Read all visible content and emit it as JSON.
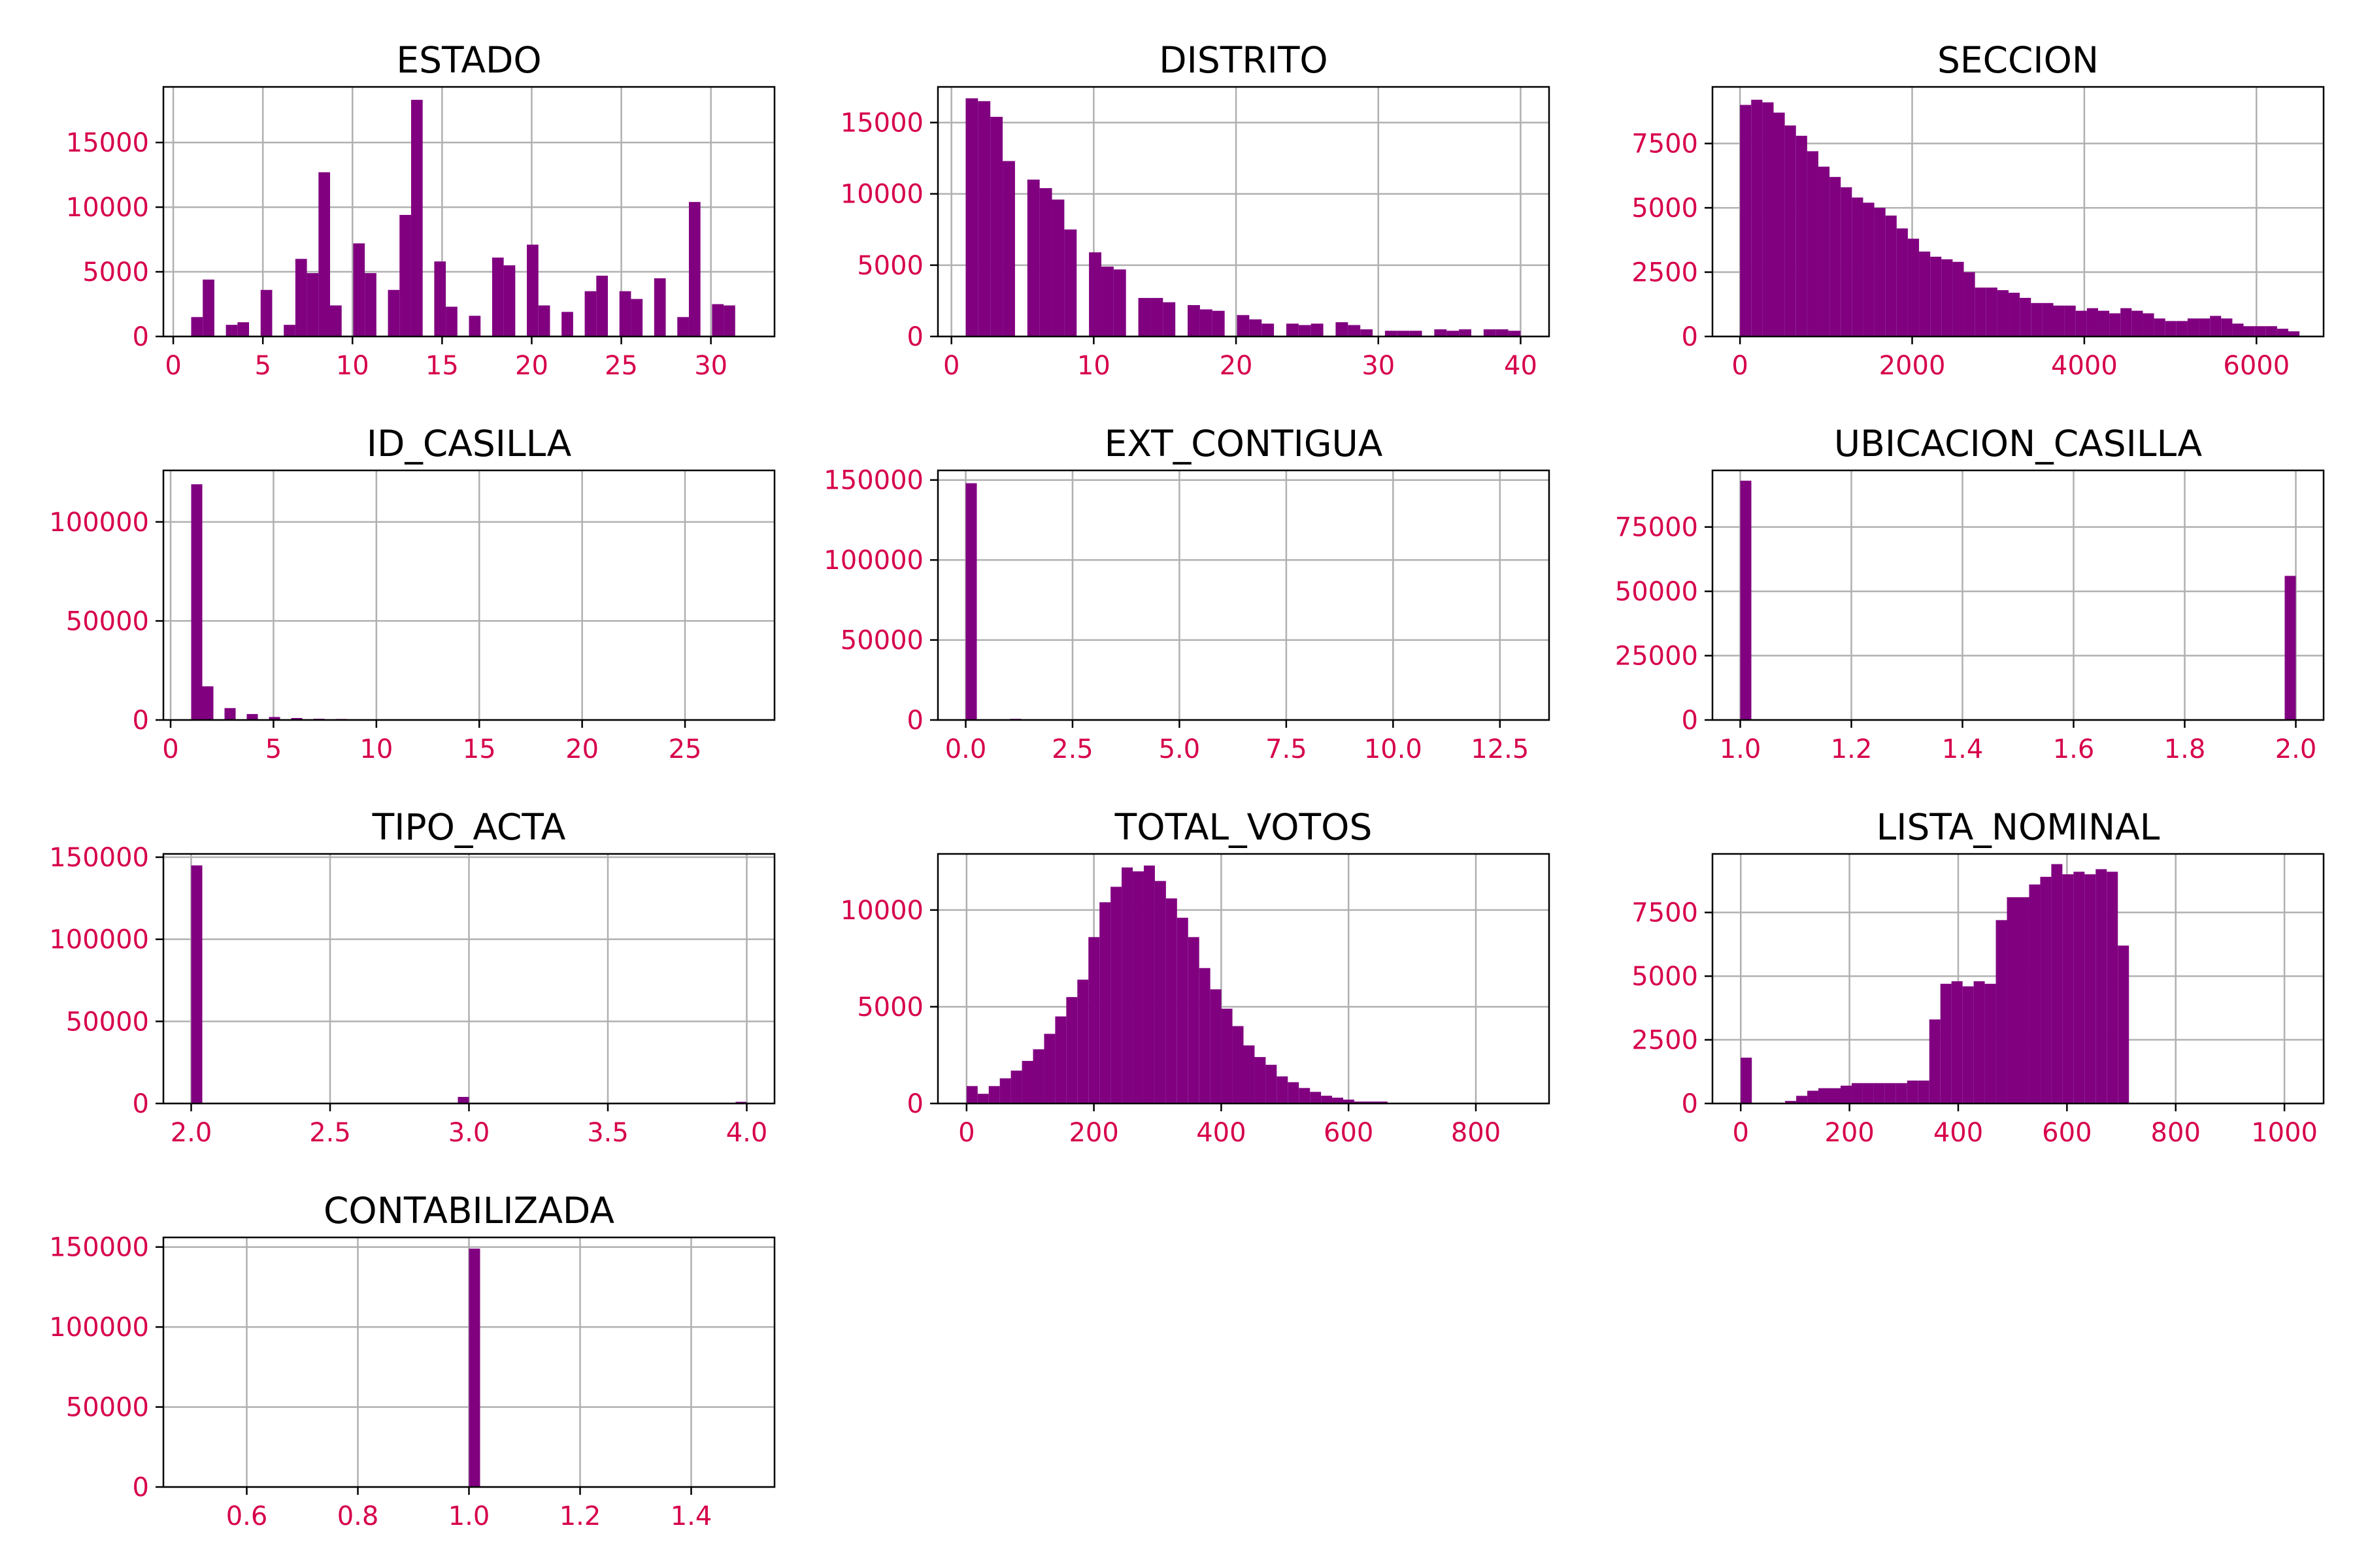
{
  "colors": {
    "bar": "#800080",
    "tick_label": "#d6004a",
    "grid": "#b0b0b0"
  },
  "chart_data": [
    {
      "type": "bar",
      "title": "ESTADO",
      "xlim": [
        -0.55,
        33.55
      ],
      "ylim": [
        0,
        19300
      ],
      "xticks": [
        0,
        5,
        10,
        15,
        20,
        25,
        30
      ],
      "yticks": [
        0,
        5000,
        10000,
        15000
      ],
      "grid": true,
      "bins_start": 1,
      "bins_end": 32,
      "values": [
        1500,
        4400,
        0,
        900,
        1100,
        0,
        3600,
        0,
        900,
        6000,
        4900,
        12700,
        2400,
        0,
        7200,
        4900,
        0,
        3600,
        9400,
        18300,
        0,
        5800,
        2300,
        0,
        1600,
        0,
        6100,
        5500,
        0,
        7100,
        2400,
        0,
        1900,
        0,
        3500,
        4700,
        0,
        3500,
        2900,
        0,
        4500,
        0,
        1500,
        10400,
        0,
        2500,
        2400,
        0
      ]
    },
    {
      "type": "bar",
      "title": "DISTRITO",
      "xlim": [
        -0.95,
        42.0
      ],
      "ylim": [
        0,
        17500
      ],
      "xticks": [
        0,
        10,
        20,
        30,
        40
      ],
      "yticks": [
        0,
        5000,
        10000,
        15000
      ],
      "grid": true,
      "bins_start": 1,
      "bins_end": 40,
      "values": [
        16700,
        16500,
        15400,
        12300,
        0,
        11000,
        10400,
        9600,
        7500,
        0,
        5900,
        4900,
        4700,
        0,
        2700,
        2700,
        2400,
        0,
        2200,
        1900,
        1800,
        0,
        1500,
        1200,
        900,
        0,
        900,
        800,
        900,
        0,
        1000,
        800,
        500,
        0,
        400,
        400,
        400,
        0,
        500,
        400,
        500,
        0,
        500,
        500,
        400
      ]
    },
    {
      "type": "bar",
      "title": "SECCION",
      "xlim": [
        -320,
        6780
      ],
      "ylim": [
        0,
        9700
      ],
      "xticks": [
        0,
        2000,
        4000,
        6000
      ],
      "yticks": [
        0,
        2500,
        5000,
        7500
      ],
      "grid": true,
      "bins_start": 0,
      "bins_end": 6500,
      "values": [
        9000,
        9200,
        9100,
        8700,
        8200,
        7800,
        7200,
        6600,
        6200,
        5800,
        5400,
        5200,
        5000,
        4700,
        4200,
        3800,
        3300,
        3100,
        3000,
        2900,
        2500,
        1900,
        1900,
        1800,
        1700,
        1500,
        1300,
        1300,
        1200,
        1200,
        1000,
        1100,
        1000,
        900,
        1100,
        1000,
        900,
        700,
        600,
        600,
        700,
        700,
        800,
        700,
        500,
        400,
        400,
        400,
        300,
        200
      ]
    },
    {
      "type": "bar",
      "title": "ID_CASILLA",
      "xlim": [
        -0.35,
        29.35
      ],
      "ylim": [
        0,
        126000
      ],
      "xticks": [
        0,
        5,
        10,
        15,
        20,
        25
      ],
      "yticks": [
        0,
        50000,
        100000
      ],
      "grid": true,
      "bins_start": 1,
      "bins_end": 28,
      "values": [
        119000,
        17000,
        0,
        6000,
        0,
        3000,
        0,
        1500,
        0,
        1000,
        0,
        600,
        0,
        500,
        0,
        300,
        0,
        200,
        0,
        100,
        0,
        100,
        0,
        100,
        0,
        100,
        0,
        100,
        0,
        0,
        0,
        0,
        0,
        0,
        0,
        0,
        0,
        0,
        0,
        0,
        0,
        0,
        0,
        0,
        0,
        0,
        0,
        0,
        0,
        0
      ]
    },
    {
      "type": "bar",
      "title": "EXT_CONTIGUA",
      "xlim": [
        -0.65,
        13.65
      ],
      "ylim": [
        0,
        156000
      ],
      "xticks": [
        0,
        2.5,
        5,
        7.5,
        10,
        12.5
      ],
      "xtick_labels": [
        "0.0",
        "2.5",
        "5.0",
        "7.5",
        "10.0",
        "12.5"
      ],
      "yticks": [
        0,
        50000,
        100000,
        150000
      ],
      "grid": true,
      "bins_start": 0,
      "bins_end": 13,
      "values": [
        148000,
        0,
        0,
        0,
        700,
        0,
        0,
        0,
        0,
        0,
        0,
        0,
        0,
        0,
        0,
        0,
        0,
        0,
        0,
        0,
        0,
        0,
        0,
        0,
        0,
        0,
        0,
        0,
        0,
        0,
        0,
        0,
        0,
        0,
        0,
        0,
        0,
        0,
        0,
        0,
        0,
        0,
        0,
        0,
        0,
        0,
        0,
        0,
        0,
        0
      ]
    },
    {
      "type": "bar",
      "title": "UBICACION_CASILLA",
      "xlim": [
        0.95,
        2.05
      ],
      "ylim": [
        0,
        97000
      ],
      "xticks": [
        1.0,
        1.2,
        1.4,
        1.6,
        1.8,
        2.0
      ],
      "xtick_labels": [
        "1.0",
        "1.2",
        "1.4",
        "1.6",
        "1.8",
        "2.0"
      ],
      "yticks": [
        0,
        25000,
        50000,
        75000
      ],
      "grid": true,
      "bins_start": 1,
      "bins_end": 2,
      "values": [
        93000,
        0,
        0,
        0,
        0,
        0,
        0,
        0,
        0,
        0,
        0,
        0,
        0,
        0,
        0,
        0,
        0,
        0,
        0,
        0,
        0,
        0,
        0,
        0,
        0,
        0,
        0,
        0,
        0,
        0,
        0,
        0,
        0,
        0,
        0,
        0,
        0,
        0,
        0,
        0,
        0,
        0,
        0,
        0,
        0,
        0,
        0,
        0,
        0,
        56000
      ]
    },
    {
      "type": "bar",
      "title": "TIPO_ACTA",
      "xlim": [
        1.9,
        4.1
      ],
      "ylim": [
        0,
        152000
      ],
      "xticks": [
        2.0,
        2.5,
        3.0,
        3.5,
        4.0
      ],
      "xtick_labels": [
        "2.0",
        "2.5",
        "3.0",
        "3.5",
        "4.0"
      ],
      "yticks": [
        0,
        50000,
        100000,
        150000
      ],
      "grid": true,
      "bins_start": 2,
      "bins_end": 4,
      "values": [
        145000,
        0,
        0,
        0,
        0,
        0,
        0,
        0,
        0,
        0,
        0,
        0,
        0,
        0,
        0,
        0,
        0,
        0,
        0,
        0,
        0,
        0,
        0,
        0,
        4000,
        0,
        0,
        0,
        0,
        0,
        0,
        0,
        0,
        0,
        0,
        0,
        0,
        0,
        0,
        0,
        0,
        0,
        0,
        0,
        0,
        0,
        0,
        0,
        0,
        1000
      ]
    },
    {
      "type": "bar",
      "title": "TOTAL_VOTOS",
      "xlim": [
        -45,
        915
      ],
      "ylim": [
        0,
        12900
      ],
      "xticks": [
        0,
        200,
        400,
        600,
        800
      ],
      "yticks": [
        0,
        5000,
        10000
      ],
      "grid": true,
      "bins_start": 0,
      "bins_end": 870,
      "values": [
        900,
        500,
        900,
        1300,
        1700,
        2200,
        2800,
        3600,
        4500,
        5500,
        6400,
        8600,
        10400,
        11200,
        12200,
        12000,
        12300,
        11500,
        10600,
        9600,
        8600,
        7000,
        5900,
        4900,
        4000,
        3000,
        2400,
        2000,
        1400,
        1100,
        800,
        600,
        400,
        300,
        200,
        100,
        100,
        100,
        0,
        0,
        0,
        0,
        0,
        0,
        0,
        0,
        0,
        0,
        0,
        0
      ]
    },
    {
      "type": "bar",
      "title": "LISTA_NOMINAL",
      "xlim": [
        -52,
        1072
      ],
      "ylim": [
        0,
        9800
      ],
      "xticks": [
        0,
        200,
        400,
        600,
        800,
        1000
      ],
      "yticks": [
        0,
        2500,
        5000,
        7500
      ],
      "grid": true,
      "bins_start": 0,
      "bins_end": 1020,
      "values": [
        1800,
        0,
        0,
        0,
        100,
        300,
        500,
        600,
        600,
        700,
        800,
        800,
        800,
        800,
        800,
        900,
        900,
        3300,
        4700,
        4800,
        4600,
        4800,
        4700,
        7200,
        8100,
        8100,
        8600,
        8900,
        9400,
        9000,
        9100,
        9000,
        9200,
        9100,
        6200,
        0,
        0,
        0,
        0,
        0,
        0,
        0,
        0,
        0,
        0,
        0,
        0,
        0,
        0,
        0
      ]
    },
    {
      "type": "bar",
      "title": "CONTABILIZADA",
      "xlim": [
        0.45,
        1.55
      ],
      "ylim": [
        0,
        156000
      ],
      "xticks": [
        0.6,
        0.8,
        1.0,
        1.2,
        1.4
      ],
      "xtick_labels": [
        "0.6",
        "0.8",
        "1.0",
        "1.2",
        "1.4"
      ],
      "yticks": [
        0,
        50000,
        100000,
        150000
      ],
      "grid": true,
      "bins_start": 0.5,
      "bins_end": 1.5,
      "values": [
        0,
        0,
        0,
        0,
        0,
        0,
        0,
        0,
        0,
        0,
        0,
        0,
        0,
        0,
        0,
        0,
        0,
        0,
        0,
        0,
        0,
        0,
        0,
        0,
        0,
        149000,
        0,
        0,
        0,
        0,
        0,
        0,
        0,
        0,
        0,
        0,
        0,
        0,
        0,
        0,
        0,
        0,
        0,
        0,
        0,
        0,
        0,
        0,
        0,
        0
      ]
    }
  ]
}
